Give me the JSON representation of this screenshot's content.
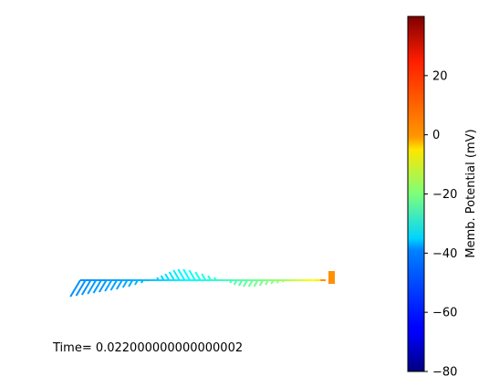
{
  "time_label": "Time= 0.022000000000000002",
  "chart_data": {
    "type": "scatter",
    "description_free": true,
    "colorbar": {
      "label": "Memb. Potential (mV)",
      "colormap": "jet",
      "vmin": -80,
      "vmax": 40,
      "ticks": [
        -80,
        -60,
        -40,
        -20,
        0,
        20
      ],
      "tick_labels": [
        "−80",
        "−60",
        "−40",
        "−20",
        "0",
        "20"
      ]
    },
    "segments": [
      {
        "v": -48,
        "dy": 18
      },
      {
        "v": -48,
        "dy": 17
      },
      {
        "v": -48,
        "dy": 16
      },
      {
        "v": -47,
        "dy": 15
      },
      {
        "v": -47,
        "dy": 14
      },
      {
        "v": -47,
        "dy": 13
      },
      {
        "v": -46,
        "dy": 12
      },
      {
        "v": -46,
        "dy": 11
      },
      {
        "v": -46,
        "dy": 10
      },
      {
        "v": -45,
        "dy": 8
      },
      {
        "v": -45,
        "dy": 7
      },
      {
        "v": -44,
        "dy": 5
      },
      {
        "v": -44,
        "dy": 3
      },
      {
        "v": -43,
        "dy": 1
      },
      {
        "v": -42,
        "dy": -1
      },
      {
        "v": -41,
        "dy": -3
      },
      {
        "v": -40,
        "dy": -5
      },
      {
        "v": -39,
        "dy": -7
      },
      {
        "v": -38,
        "dy": -9
      },
      {
        "v": -37,
        "dy": -11
      },
      {
        "v": -36,
        "dy": -12
      },
      {
        "v": -35,
        "dy": -12
      },
      {
        "v": -34,
        "dy": -11
      },
      {
        "v": -33,
        "dy": -9
      },
      {
        "v": -32,
        "dy": -7
      },
      {
        "v": -31,
        "dy": -5
      },
      {
        "v": -30,
        "dy": -3
      },
      {
        "v": -29,
        "dy": -1
      },
      {
        "v": -28,
        "dy": 1
      },
      {
        "v": -27,
        "dy": 3
      },
      {
        "v": -26,
        "dy": 5
      },
      {
        "v": -25,
        "dy": 6
      },
      {
        "v": -24,
        "dy": 7
      },
      {
        "v": -23,
        "dy": 7
      },
      {
        "v": -22,
        "dy": 7
      },
      {
        "v": -21,
        "dy": 6
      },
      {
        "v": -20,
        "dy": 5
      },
      {
        "v": -19,
        "dy": 4
      },
      {
        "v": -18,
        "dy": 3
      },
      {
        "v": -17,
        "dy": 2
      },
      {
        "v": -15,
        "dy": 1
      },
      {
        "v": -13,
        "dy": 0
      },
      {
        "v": -11,
        "dy": -1
      },
      {
        "v": -9,
        "dy": -1
      },
      {
        "v": -7,
        "dy": -1
      },
      {
        "v": -5,
        "dy": -1
      },
      {
        "v": -3,
        "dy": -1
      },
      {
        "v": 8,
        "dy": 0
      }
    ]
  }
}
